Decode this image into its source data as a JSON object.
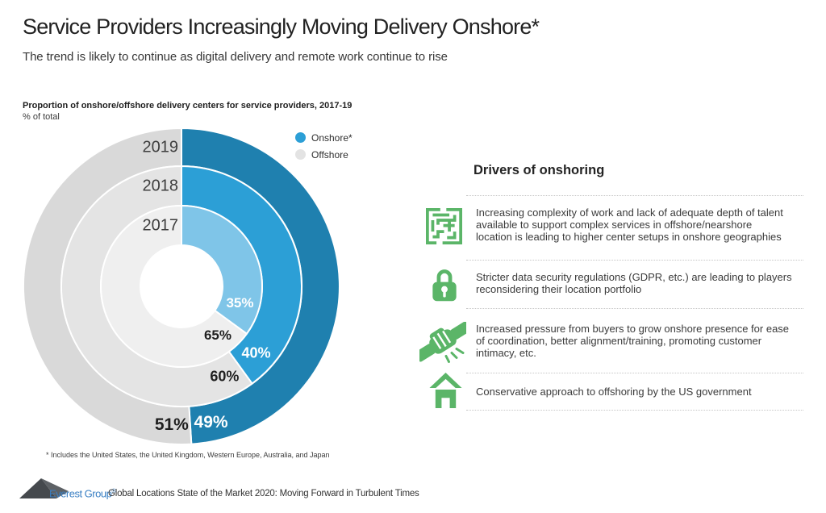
{
  "page": {
    "title": "Service Providers Increasingly Moving Delivery Onshore*",
    "subtitle": "The trend is likely to continue as digital delivery and remote work continue to rise"
  },
  "chart": {
    "title": "Proportion of onshore/offshore delivery centers for service providers, 2017-19",
    "unit_label": "% of total",
    "legend": [
      {
        "label": "Onshore*",
        "color": "#2C9FD6"
      },
      {
        "label": "Offshore",
        "color": "#E3E3E3"
      }
    ],
    "footnote": "* Includes the United States, the United Kingdom, Western Europe, Australia, and Japan"
  },
  "chart_data": {
    "type": "donut",
    "title": "Proportion of onshore/offshore delivery centers for service providers, 2017-19",
    "unit": "% of total",
    "series_labels": [
      "Onshore*",
      "Offshore"
    ],
    "rings": [
      {
        "year": "2019",
        "onshore_pct": 49,
        "offshore_pct": 51,
        "onshore_color": "#1F80AF",
        "offshore_color": "#D9D9D9"
      },
      {
        "year": "2018",
        "onshore_pct": 40,
        "offshore_pct": 60,
        "onshore_color": "#2C9FD6",
        "offshore_color": "#E4E4E4"
      },
      {
        "year": "2017",
        "onshore_pct": 35,
        "offshore_pct": 65,
        "onshore_color": "#7FC5E8",
        "offshore_color": "#EFEFEF"
      }
    ],
    "label_colors": {
      "onshore": "#FFFFFF",
      "offshore": "#1F1F1F"
    }
  },
  "drivers": {
    "heading": "Drivers of onshoring",
    "icon_color": "#5BB568",
    "items": [
      {
        "icon": "maze-icon",
        "text": "Increasing complexity of work and lack of adequate depth of talent\navailable to support complex services in offshore/nearshore\nlocation is leading to higher center setups in onshore geographies"
      },
      {
        "icon": "lock-icon",
        "text": "Stricter data security regulations (GDPR, etc.) are leading to players\nreconsidering their location portfolio"
      },
      {
        "icon": "handshake-icon",
        "text": "Increased pressure from buyers to grow onshore presence for ease\nof coordination, better alignment/training, promoting customer\nintimacy, etc."
      },
      {
        "icon": "house-icon",
        "text": "Conservative approach to offshoring by the US government"
      }
    ]
  },
  "footer": {
    "logo_text": "Everest Group",
    "registered_mark": "®",
    "source": "Global Locations State of the Market 2020: Moving Forward in Turbulent Times"
  }
}
